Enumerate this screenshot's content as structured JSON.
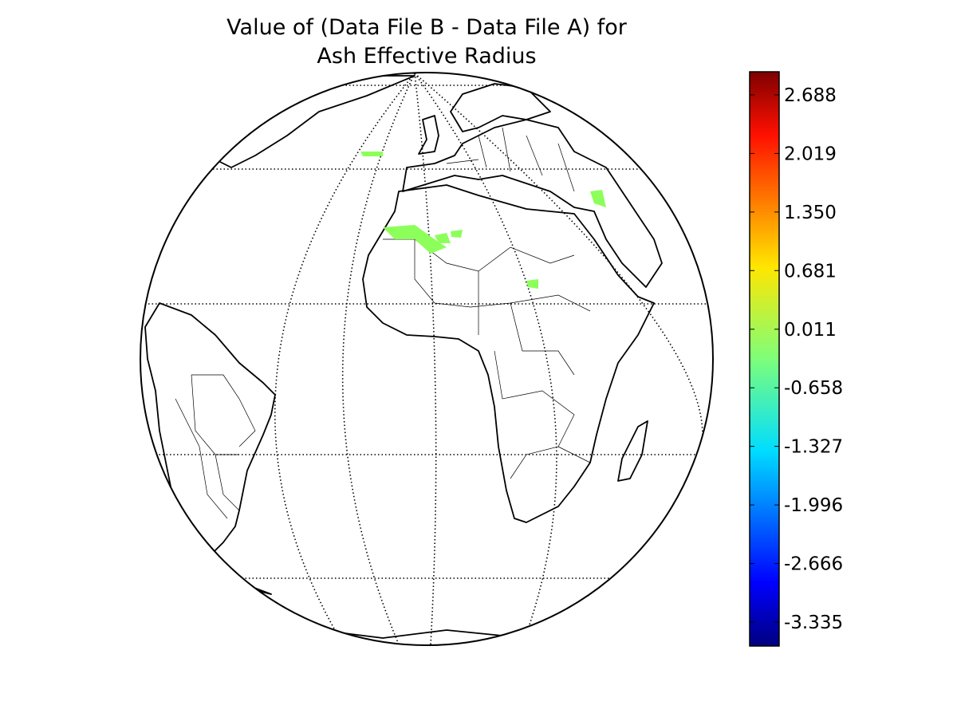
{
  "map": {
    "title": [
      "Value of (Data File B - Data File A) for",
      "Ash Effective Radius"
    ],
    "colorbar": {
      "lim": [
        -3.608,
        2.952
      ],
      "ticks": [
        -3.335,
        -2.666,
        -1.996,
        -1.327,
        -0.658,
        0.011,
        0.681,
        {
          "value": 1.35,
          "label": "1.350"
        },
        2.019,
        2.688
      ]
    }
  }
}
